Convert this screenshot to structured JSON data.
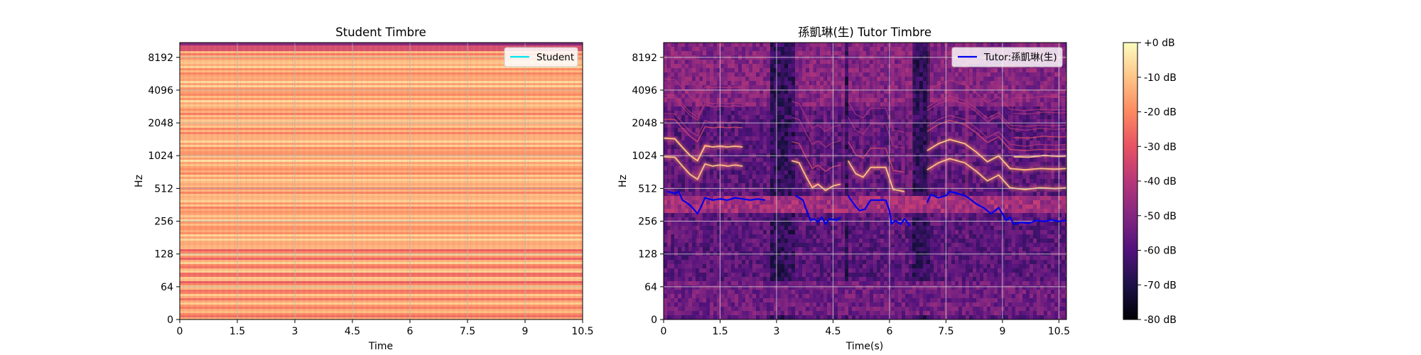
{
  "chart_data": [
    {
      "type": "heatmap",
      "title": "Student Timbre",
      "xlabel": "Time",
      "ylabel": "Hz",
      "xlim": [
        0,
        10.5
      ],
      "x_ticks": [
        "0",
        "1.5",
        "3",
        "4.5",
        "6",
        "7.5",
        "9",
        "10.5"
      ],
      "x_tick_values": [
        0,
        1.5,
        3,
        4.5,
        6,
        7.5,
        9,
        10.5
      ],
      "y_scale": "symlog (base 2, linear below 64 Hz)",
      "y_ticks": [
        "0",
        "64",
        "128",
        "256",
        "512",
        "1024",
        "2048",
        "4096",
        "8192"
      ],
      "y_tick_values": [
        0,
        64,
        128,
        256,
        512,
        1024,
        2048,
        4096,
        8192
      ],
      "grid": true,
      "legend": {
        "position": "upper-right",
        "entries": [
          "Student"
        ]
      },
      "series": [
        {
          "name": "Student",
          "color": "#00e5ee",
          "values": []
        }
      ],
      "colormap": "magma",
      "description": "near-uniform bright spectrogram (-5 to -25 dB) with horizontal harmonic banding"
    },
    {
      "type": "heatmap",
      "title": "孫凱琳(生) Tutor Timbre",
      "xlabel": "Time(s)",
      "ylabel": "Hz",
      "xlim": [
        0,
        10.7
      ],
      "x_ticks": [
        "0",
        "1.5",
        "3",
        "4.5",
        "6",
        "7.5",
        "9",
        "10.5"
      ],
      "x_tick_values": [
        0,
        1.5,
        3,
        4.5,
        6,
        7.5,
        9,
        10.5
      ],
      "y_scale": "symlog (base 2, linear below 64 Hz)",
      "y_ticks": [
        "0",
        "64",
        "128",
        "256",
        "512",
        "1024",
        "2048",
        "4096",
        "8192"
      ],
      "y_tick_values": [
        0,
        64,
        128,
        256,
        512,
        1024,
        2048,
        4096,
        8192
      ],
      "grid": true,
      "legend": {
        "position": "upper-right",
        "entries": [
          "Tutor:孫凱琳(生)"
        ]
      },
      "colormap": "magma",
      "pitch_contour": {
        "name": "Tutor:孫凱琳(生)",
        "color": "#0000ee",
        "segments": [
          [
            [
              0.1,
              480
            ],
            [
              0.3,
              460
            ],
            [
              0.4,
              480
            ],
            [
              0.5,
              400
            ],
            [
              0.6,
              380
            ],
            [
              0.7,
              360
            ],
            [
              0.8,
              330
            ],
            [
              0.9,
              300
            ],
            [
              1.0,
              350
            ],
            [
              1.1,
              420
            ],
            [
              1.3,
              400
            ],
            [
              1.5,
              410
            ],
            [
              1.7,
              400
            ],
            [
              1.9,
              420
            ],
            [
              2.1,
              410
            ],
            [
              2.3,
              400
            ],
            [
              2.5,
              410
            ],
            [
              2.7,
              400
            ]
          ],
          [
            [
              3.5,
              440
            ],
            [
              3.7,
              400
            ],
            [
              3.8,
              320
            ],
            [
              3.9,
              260
            ],
            [
              4.0,
              270
            ],
            [
              4.1,
              250
            ],
            [
              4.2,
              280
            ],
            [
              4.3,
              240
            ],
            [
              4.4,
              270
            ],
            [
              4.6,
              260
            ],
            [
              4.7,
              280
            ]
          ],
          [
            [
              4.9,
              440
            ],
            [
              5.0,
              390
            ],
            [
              5.1,
              350
            ],
            [
              5.2,
              320
            ],
            [
              5.35,
              330
            ],
            [
              5.5,
              400
            ],
            [
              5.7,
              400
            ],
            [
              5.9,
              400
            ],
            [
              6.0,
              320
            ],
            [
              6.05,
              240
            ],
            [
              6.15,
              260
            ],
            [
              6.3,
              240
            ],
            [
              6.4,
              270
            ],
            [
              6.55,
              230
            ]
          ],
          [
            [
              7.0,
              380
            ],
            [
              7.1,
              450
            ],
            [
              7.3,
              420
            ],
            [
              7.5,
              440
            ],
            [
              7.6,
              480
            ],
            [
              7.8,
              460
            ],
            [
              8.0,
              440
            ],
            [
              8.1,
              420
            ],
            [
              8.3,
              370
            ],
            [
              8.5,
              340
            ],
            [
              8.7,
              300
            ],
            [
              8.9,
              340
            ],
            [
              9.0,
              300
            ],
            [
              9.1,
              260
            ],
            [
              9.2,
              280
            ],
            [
              9.3,
              240
            ],
            [
              9.5,
              250
            ],
            [
              9.7,
              245
            ],
            [
              9.9,
              260
            ],
            [
              10.1,
              255
            ],
            [
              10.3,
              262
            ],
            [
              10.5,
              255
            ],
            [
              10.7,
              260
            ]
          ]
        ]
      },
      "harmonic_tracks": [
        [
          [
            0.0,
            1000
          ],
          [
            0.3,
            990
          ],
          [
            0.5,
            820
          ],
          [
            0.7,
            690
          ],
          [
            0.9,
            620
          ],
          [
            1.1,
            860
          ],
          [
            1.3,
            820
          ],
          [
            1.5,
            840
          ],
          [
            1.7,
            820
          ],
          [
            1.9,
            840
          ],
          [
            2.1,
            820
          ]
        ],
        [
          [
            0.0,
            1480
          ],
          [
            0.3,
            1460
          ],
          [
            0.5,
            1220
          ],
          [
            0.7,
            1030
          ],
          [
            0.9,
            920
          ],
          [
            1.1,
            1260
          ],
          [
            1.3,
            1230
          ],
          [
            1.5,
            1250
          ],
          [
            1.7,
            1230
          ],
          [
            1.9,
            1250
          ],
          [
            2.1,
            1230
          ]
        ],
        [
          [
            3.4,
            920
          ],
          [
            3.6,
            880
          ],
          [
            3.8,
            640
          ],
          [
            3.95,
            520
          ],
          [
            4.1,
            560
          ],
          [
            4.3,
            490
          ],
          [
            4.5,
            540
          ],
          [
            4.7,
            560
          ]
        ],
        [
          [
            4.9,
            920
          ],
          [
            5.1,
            700
          ],
          [
            5.3,
            650
          ],
          [
            5.5,
            800
          ],
          [
            5.9,
            800
          ],
          [
            6.1,
            500
          ],
          [
            6.4,
            480
          ]
        ],
        [
          [
            7.0,
            760
          ],
          [
            7.3,
            880
          ],
          [
            7.6,
            960
          ],
          [
            8.0,
            880
          ],
          [
            8.3,
            740
          ],
          [
            8.6,
            600
          ],
          [
            8.9,
            680
          ],
          [
            9.2,
            520
          ],
          [
            9.6,
            500
          ],
          [
            10.0,
            520
          ],
          [
            10.4,
            510
          ],
          [
            10.7,
            520
          ]
        ],
        [
          [
            7.0,
            1140
          ],
          [
            7.3,
            1320
          ],
          [
            7.6,
            1440
          ],
          [
            8.0,
            1320
          ],
          [
            8.3,
            1110
          ],
          [
            8.6,
            900
          ],
          [
            8.9,
            1020
          ],
          [
            9.2,
            780
          ],
          [
            9.6,
            760
          ],
          [
            10.0,
            780
          ],
          [
            10.4,
            770
          ],
          [
            10.7,
            780
          ]
        ],
        [
          [
            9.3,
            1000
          ],
          [
            9.7,
            990
          ],
          [
            10.1,
            1030
          ],
          [
            10.5,
            1010
          ],
          [
            10.7,
            1020
          ]
        ]
      ]
    }
  ],
  "colorbar": {
    "labels": [
      "+0 dB",
      "-10 dB",
      "-20 dB",
      "-30 dB",
      "-40 dB",
      "-50 dB",
      "-60 dB",
      "-70 dB",
      "-80 dB"
    ],
    "values": [
      0,
      -10,
      -20,
      -30,
      -40,
      -50,
      -60,
      -70,
      -80
    ],
    "range": [
      -80,
      0
    ],
    "colormap": "magma"
  }
}
